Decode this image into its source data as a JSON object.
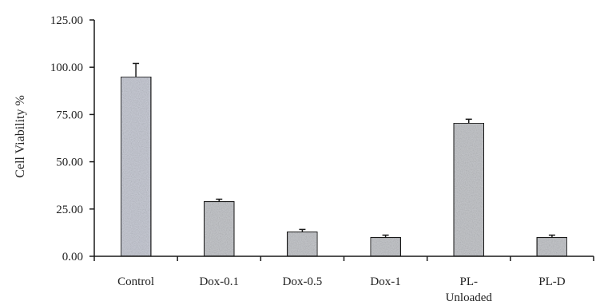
{
  "chart_data": {
    "type": "bar",
    "categories": [
      [
        "Control"
      ],
      [
        "Dox-0.1"
      ],
      [
        "Dox-0.5"
      ],
      [
        "Dox-1"
      ],
      [
        "PL-",
        "Unloaded"
      ],
      [
        "PL-D"
      ]
    ],
    "values": [
      95.0,
      29.0,
      13.0,
      10.0,
      70.5,
      10.0
    ],
    "errors": [
      7.0,
      1.2,
      1.2,
      1.2,
      2.0,
      1.2
    ],
    "ylabel": "Cell Viability %",
    "ylim": [
      0,
      125
    ],
    "yticks": [
      0,
      25,
      50,
      75,
      100,
      125
    ],
    "ytick_labels": [
      "0.00",
      "25.00",
      "50.00",
      "75.00",
      "100.00",
      "125.00"
    ],
    "grid": false,
    "colors": {
      "bar_fill": "#c6c8cc",
      "bar_fill_control": "#c9ccd6",
      "bar_stroke": "#1a1a1a",
      "axis": "#1a1a1a"
    }
  }
}
